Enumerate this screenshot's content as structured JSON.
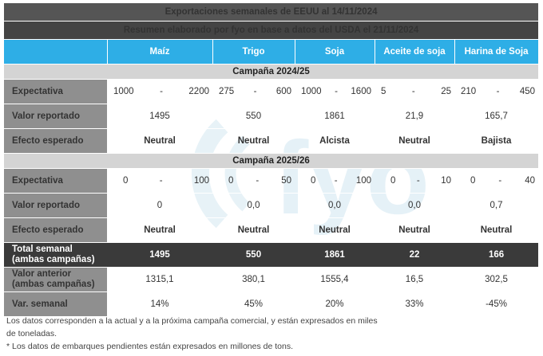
{
  "title": "Exportaciones semanales de EEUU al 14/11/2024",
  "subtitle": "Resumen elaborado por fyo en base a datos del USDA el 21/11/2024",
  "watermark": "fyo",
  "columns": [
    "Maíz",
    "Trigo",
    "Soja",
    "Aceite de soja",
    "Harina de Soja"
  ],
  "campaign1": {
    "label": "Campaña  2024/25",
    "expectativa_label": "Expectativa",
    "expectativa": [
      {
        "low": "1000",
        "dash": "-",
        "high": "2200"
      },
      {
        "low": "275",
        "dash": "-",
        "high": "600"
      },
      {
        "low": "1000",
        "dash": "-",
        "high": "1600"
      },
      {
        "low": "5",
        "dash": "-",
        "high": "25"
      },
      {
        "low": "210",
        "dash": "-",
        "high": "450"
      }
    ],
    "valor_label": "Valor reportado",
    "valor": [
      "1495",
      "550",
      "1861",
      "21,9",
      "165,7"
    ],
    "efecto_label": "Efecto esperado",
    "efecto": [
      "Neutral",
      "Neutral",
      "Alcista",
      "Neutral",
      "Bajista"
    ]
  },
  "campaign2": {
    "label": "Campaña  2025/26",
    "expectativa_label": "Expectativa",
    "expectativa": [
      {
        "low": "0",
        "dash": "-",
        "high": "100"
      },
      {
        "low": "0",
        "dash": "-",
        "high": "50"
      },
      {
        "low": "0",
        "dash": "-",
        "high": "100"
      },
      {
        "low": "0",
        "dash": "-",
        "high": "10"
      },
      {
        "low": "0",
        "dash": "-",
        "high": "40"
      }
    ],
    "valor_label": "Valor reportado",
    "valor": [
      "0",
      "0,0",
      "0,0",
      "0,0",
      "0,7"
    ],
    "efecto_label": "Efecto esperado",
    "efecto": [
      "Neutral",
      "Neutral",
      "Neutral",
      "Neutral",
      "Neutral"
    ]
  },
  "total": {
    "label_line1": "Total semanal",
    "label_line2": "(ambas campañas)",
    "values": [
      "1495",
      "550",
      "1861",
      "22",
      "166"
    ]
  },
  "anterior": {
    "label_line1": "Valor anterior",
    "label_line2": "(ambas campañas)",
    "values": [
      "1315,1",
      "380,1",
      "1555,4",
      "16,5",
      "302,5"
    ]
  },
  "var": {
    "label": "Var. semanal",
    "values": [
      "14%",
      "45%",
      "20%",
      "33%",
      "-45%"
    ]
  },
  "notes": [
    "Los datos corresponden a la actual y a la próxima campaña comercial, y están expresados en miles de toneladas.",
    "* Los datos de embarques pendientes están expresados en millones de tons."
  ],
  "colors": {
    "header": "#2eaee6",
    "neutral": "#2a9bd6",
    "alcista": "#2db52d",
    "bajista": "#e02020"
  }
}
